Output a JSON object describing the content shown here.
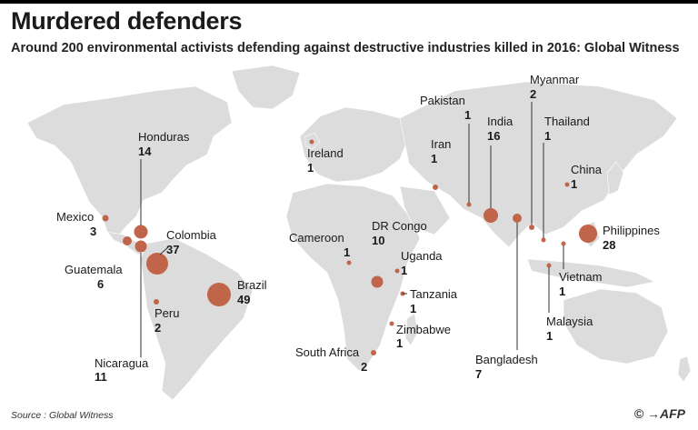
{
  "title": "Murdered defenders",
  "subtitle": "Around 200 environmental activists defending against destructive industries killed in 2016: Global Witness",
  "source": "Source : Global Witness",
  "credit": "© →AFP",
  "colors": {
    "bubble": "#c0644a",
    "land": "#dcdcdc"
  },
  "chart_data": {
    "type": "map",
    "title": "Murdered defenders",
    "unit": "activists killed in 2016",
    "countries": [
      {
        "name": "Honduras",
        "value": 14
      },
      {
        "name": "Mexico",
        "value": 3
      },
      {
        "name": "Colombia",
        "value": 37
      },
      {
        "name": "Guatemala",
        "value": 6
      },
      {
        "name": "Brazil",
        "value": 49
      },
      {
        "name": "Peru",
        "value": 2
      },
      {
        "name": "Nicaragua",
        "value": 11
      },
      {
        "name": "Ireland",
        "value": 1
      },
      {
        "name": "Cameroon",
        "value": 1
      },
      {
        "name": "DR Congo",
        "value": 10
      },
      {
        "name": "Uganda",
        "value": 1
      },
      {
        "name": "Tanzania",
        "value": 1
      },
      {
        "name": "Zimbabwe",
        "value": 1
      },
      {
        "name": "South Africa",
        "value": 2
      },
      {
        "name": "Iran",
        "value": 1
      },
      {
        "name": "Pakistan",
        "value": 1
      },
      {
        "name": "India",
        "value": 16
      },
      {
        "name": "Myanmar",
        "value": 2
      },
      {
        "name": "Thailand",
        "value": 1
      },
      {
        "name": "China",
        "value": 1
      },
      {
        "name": "Philippines",
        "value": 28
      },
      {
        "name": "Vietnam",
        "value": 1
      },
      {
        "name": "Malaysia",
        "value": 1
      },
      {
        "name": "Bangladesh",
        "value": 7
      }
    ]
  }
}
